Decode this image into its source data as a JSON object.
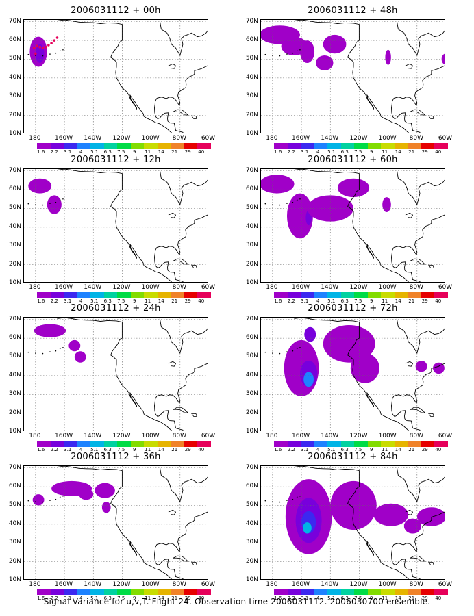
{
  "panels": [
    {
      "title": "2006031112 + 00h"
    },
    {
      "title": "2006031112 + 48h"
    },
    {
      "title": "2006031112 + 12h"
    },
    {
      "title": "2006031112 + 60h"
    },
    {
      "title": "2006031112 + 24h"
    },
    {
      "title": "2006031112 + 72h"
    },
    {
      "title": "2006031112 + 36h"
    },
    {
      "title": "2006031112 + 84h"
    }
  ],
  "lat_labels": [
    "70N",
    "60N",
    "50N",
    "40N",
    "30N",
    "20N",
    "10N"
  ],
  "lon_labels": [
    "180",
    "160W",
    "140W",
    "120W",
    "100W",
    "80W",
    "60W"
  ],
  "colorbar": {
    "labels": [
      "1.6",
      "2.2",
      "3.1",
      "4",
      "5.1",
      "6.3",
      "7.5",
      "9",
      "11",
      "14",
      "21",
      "29",
      "40"
    ],
    "colors": [
      "#a000c8",
      "#7800dc",
      "#3c28f0",
      "#1e82ff",
      "#00b4e6",
      "#00d2a0",
      "#00dc46",
      "#82dc00",
      "#c8dc00",
      "#e6b400",
      "#f08228",
      "#e60000",
      "#e6005a"
    ]
  },
  "footer": "Signal Variance for u,v,T. Flight 24. Observation time 2006031112. 2006030700 ensemble."
}
